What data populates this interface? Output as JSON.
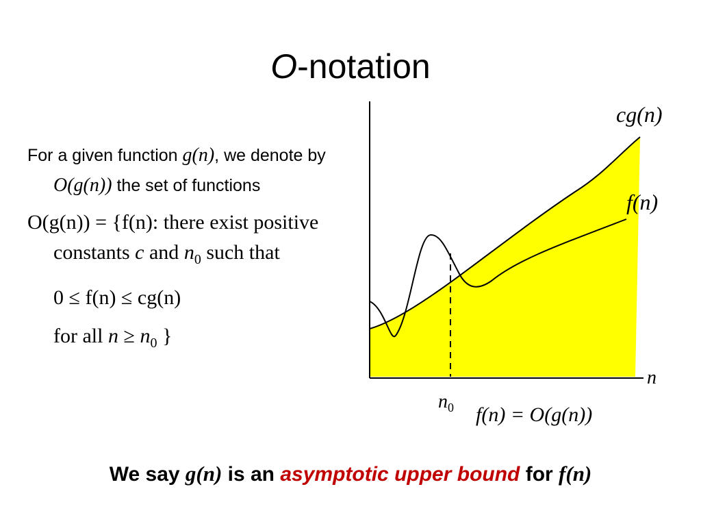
{
  "slide": {
    "title_letter": "O",
    "title_rest": "-notation"
  },
  "definition": {
    "intro_prefix": "For a given function ",
    "intro_g_of_n": "g(n)",
    "intro_mid": ", we denote by ",
    "intro_o_g_n": "O(g(n))",
    "intro_suffix": " the set of functions",
    "set_def_prefix": "O(g(n)) = {f(n): there exist positive constants ",
    "c": "c",
    "and": " and ",
    "n0_n": "n",
    "n0_sub": "0",
    "such_that": " such that",
    "inequality": "0 ≤  f(n) ≤ cg(n)",
    "forall_prefix": "for all ",
    "forall_n": "n",
    "forall_ge": " ≥ ",
    "forall_n0_n": "n",
    "forall_n0_sub": "0",
    "forall_close": " }"
  },
  "figure": {
    "label_cg": "cg(n)",
    "label_f": "f(n)",
    "label_n": "n",
    "label_n0_n": "n",
    "label_n0_sub": "0",
    "caption": "f(n) = O(g(n))",
    "colors": {
      "fill": "#ffff00",
      "curve": "#000000"
    }
  },
  "conclusion": {
    "prefix": "We say ",
    "g": "g(n)",
    "mid": " is an ",
    "highlight": "asymptotic upper bound",
    "for": " for ",
    "f": "f(n)"
  }
}
